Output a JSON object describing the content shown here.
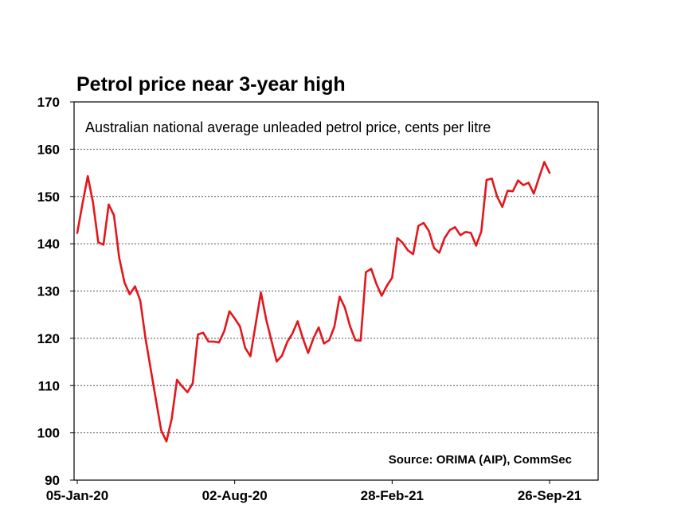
{
  "chart_data": {
    "type": "line",
    "title": "Petrol price near 3-year high",
    "subtitle": "Australian national average unleaded petrol price, cents per litre",
    "source": "Source: ORIMA (AIP), CommSec",
    "xlabel": "",
    "ylabel": "",
    "ylim": [
      90,
      170
    ],
    "yticks": [
      90,
      100,
      110,
      120,
      130,
      140,
      150,
      160,
      170
    ],
    "xtick_labels": [
      "05-Jan-20",
      "02-Aug-20",
      "28-Feb-21",
      "26-Sep-21"
    ],
    "xtick_index": [
      0,
      30,
      60,
      90
    ],
    "grid": true,
    "series": [
      {
        "color": "#e3161c",
        "values": [
          142.3,
          148.5,
          154.3,
          148.7,
          140.3,
          139.8,
          148.3,
          146.0,
          137.0,
          131.8,
          129.3,
          131.0,
          128.0,
          120.0,
          113.5,
          107.0,
          100.5,
          98.2,
          103.0,
          111.2,
          109.8,
          108.6,
          110.5,
          120.8,
          121.2,
          119.3,
          119.3,
          119.1,
          121.5,
          125.7,
          124.2,
          122.5,
          118.0,
          116.2,
          123.0,
          129.7,
          124.0,
          119.5,
          115.1,
          116.3,
          119.2,
          121.0,
          123.6,
          120.0,
          116.9,
          120.0,
          122.3,
          118.9,
          119.6,
          122.5,
          128.8,
          126.5,
          122.5,
          119.6,
          119.5,
          134.0,
          134.7,
          131.5,
          129.0,
          131.1,
          132.8,
          141.2,
          140.2,
          138.6,
          137.8,
          143.8,
          144.4,
          142.7,
          139.1,
          138.1,
          141.2,
          142.9,
          143.5,
          141.8,
          142.5,
          142.3,
          139.6,
          142.6,
          153.5,
          153.8,
          150.0,
          147.8,
          151.2,
          151.1,
          153.4,
          152.4,
          152.9,
          150.6,
          154.0,
          157.3,
          155.0
        ]
      }
    ]
  }
}
